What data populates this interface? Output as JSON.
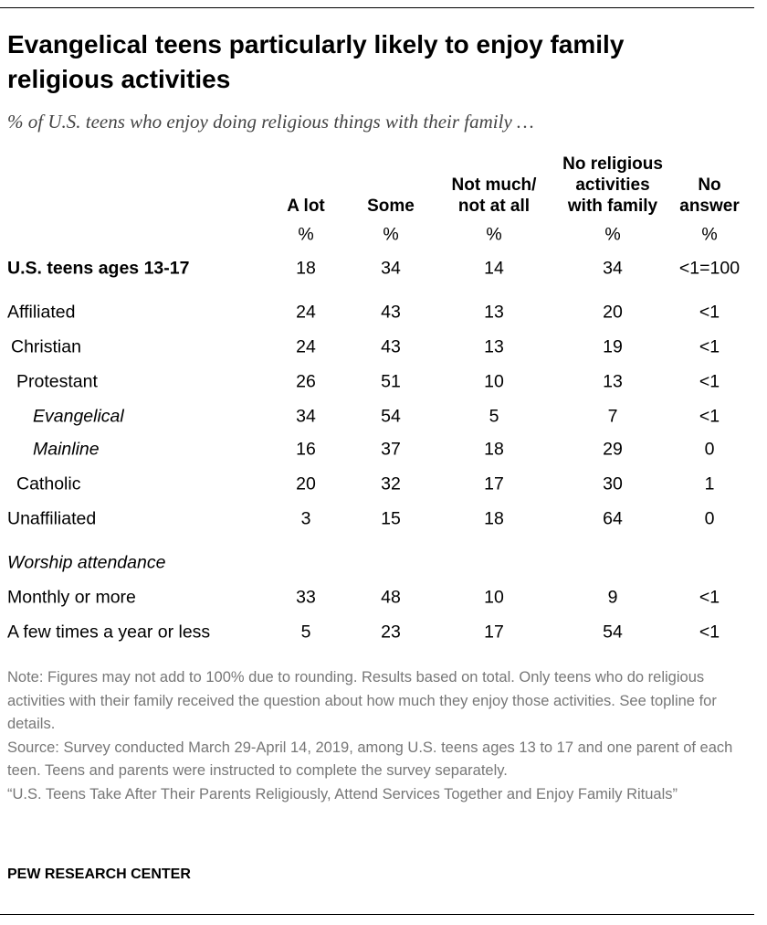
{
  "header": {
    "title": "Evangelical teens particularly likely to enjoy family religious activities",
    "subtitle": "% of U.S. teens who enjoy doing religious things with their family …"
  },
  "table": {
    "columns": [
      [
        "A lot"
      ],
      [
        "Some"
      ],
      [
        "Not much/",
        "not at all"
      ],
      [
        "No religious",
        "activities",
        "with family"
      ],
      [
        "No",
        "answer"
      ]
    ],
    "units": [
      "%",
      "%",
      "%",
      "%",
      "%"
    ],
    "rows": [
      {
        "label": "U.S. teens ages 13-17",
        "cells": [
          "18",
          "34",
          "14",
          "34",
          "<1=100"
        ]
      },
      {
        "label": "Affiliated",
        "cells": [
          "24",
          "43",
          "13",
          "20",
          "<1"
        ]
      },
      {
        "label": "Christian",
        "cells": [
          "24",
          "43",
          "13",
          "19",
          "<1"
        ]
      },
      {
        "label": "Protestant",
        "cells": [
          "26",
          "51",
          "10",
          "13",
          "<1"
        ]
      },
      {
        "label": "Evangelical",
        "cells": [
          "34",
          "54",
          "5",
          "7",
          "<1"
        ]
      },
      {
        "label": "Mainline",
        "cells": [
          "16",
          "37",
          "18",
          "29",
          "0"
        ]
      },
      {
        "label": "Catholic",
        "cells": [
          "20",
          "32",
          "17",
          "30",
          "1"
        ]
      },
      {
        "label": "Unaffiliated",
        "cells": [
          "3",
          "15",
          "18",
          "64",
          "0"
        ]
      },
      {
        "label": "Worship attendance"
      },
      {
        "label": "Monthly or more",
        "cells": [
          "33",
          "48",
          "10",
          "9",
          "<1"
        ]
      },
      {
        "label": "A few times a year or less",
        "cells": [
          "5",
          "23",
          "17",
          "54",
          "<1"
        ]
      }
    ]
  },
  "notes": [
    "Note: Figures may not add to 100% due to rounding. Results based on total. Only teens who do religious activities with their family received the question about how much they enjoy those activities. See topline for details.",
    "Source: Survey conducted March 29-April 14, 2019, among U.S. teens ages 13 to 17 and one parent of each teen. Teens and parents were instructed to complete the survey separately.",
    "“U.S. Teens Take After Their Parents Religiously, Attend Services Together and Enjoy Family Rituals”"
  ],
  "footer": "PEW RESEARCH CENTER"
}
